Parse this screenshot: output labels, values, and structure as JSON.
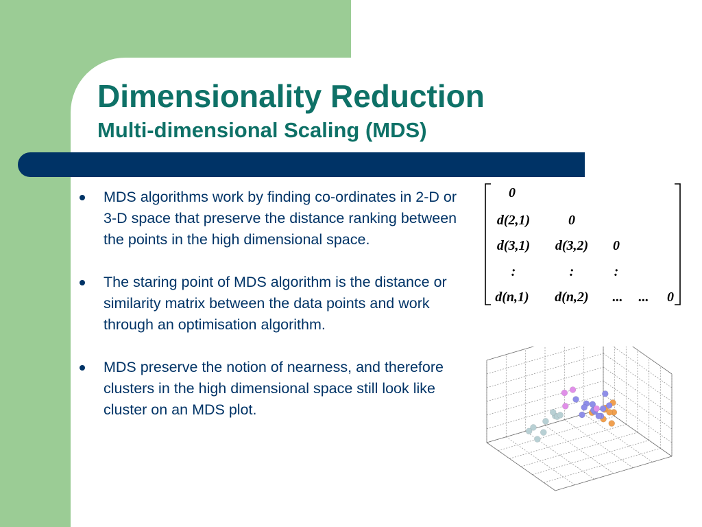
{
  "slide": {
    "title": "Dimensionality Reduction",
    "subtitle": "Multi-dimensional Scaling (MDS)",
    "colors": {
      "green": "#9bcc95",
      "teal_title": "#0e7167",
      "navy": "#003366",
      "blue_points": "#8e8ee8",
      "orange_points": "#f0a050",
      "violet_points": "#e090e8",
      "gray_points": "#b8d0d4"
    }
  },
  "bullets": [
    {
      "text": "MDS algorithms work by finding co-ordinates in 2-D or 3-D space that preserve the distance ranking between the points in the high dimensional space."
    },
    {
      "text": "The staring point of MDS algorithm is the distance or similarity matrix between the data points and work through an optimisation algorithm."
    },
    {
      "text": "MDS preserve the notion of nearness, and therefore clusters in the high dimensional space still look like cluster on an MDS plot."
    }
  ],
  "matrix": {
    "row1": {
      "c1": "0"
    },
    "row2": {
      "c1": "d(2,1)",
      "c2": "0"
    },
    "row3": {
      "c1": "d(3,1)",
      "c2": "d(3,2)",
      "c3": "0"
    },
    "row4": {
      "c1": ":",
      "c2": ":",
      "c3": ":"
    },
    "row5": {
      "c1": "d(n,1)",
      "c2": "d(n,2)",
      "c3": "...",
      "c4": "...",
      "c5": "0"
    }
  },
  "chart_data": {
    "type": "scatter",
    "dimensions": 3,
    "grid": true,
    "series": [
      {
        "color": "#8e8ee8",
        "points": [
          [
            -0.1,
            0.6,
            0.3
          ],
          [
            0.0,
            0.7,
            0.2
          ],
          [
            0.1,
            0.6,
            0.5
          ],
          [
            0.2,
            0.5,
            0.4
          ],
          [
            0.1,
            0.8,
            0.3
          ],
          [
            -0.2,
            0.5,
            0.6
          ],
          [
            0.3,
            0.6,
            0.3
          ],
          [
            0.2,
            0.8,
            0.5
          ],
          [
            0.0,
            0.5,
            0.2
          ],
          [
            0.1,
            0.4,
            0.4
          ],
          [
            -0.1,
            0.8,
            0.5
          ],
          [
            0.3,
            0.4,
            0.6
          ]
        ]
      },
      {
        "color": "#f0a050",
        "points": [
          [
            -0.6,
            0.1,
            -0.3
          ],
          [
            -0.5,
            0.0,
            -0.2
          ],
          [
            -0.4,
            0.1,
            -0.4
          ],
          [
            -0.7,
            -0.1,
            -0.2
          ],
          [
            -0.5,
            0.2,
            -0.5
          ],
          [
            -0.3,
            -0.1,
            -0.3
          ],
          [
            -0.6,
            -0.2,
            -0.4
          ],
          [
            -0.4,
            0.3,
            -0.1
          ]
        ]
      },
      {
        "color": "#e090e8",
        "points": [
          [
            0.2,
            0.9,
            0.6
          ],
          [
            0.4,
            0.2,
            0.7
          ],
          [
            0.5,
            0.4,
            0.5
          ],
          [
            0.3,
            0.3,
            0.8
          ]
        ]
      },
      {
        "color": "#b8d0d4",
        "points": [
          [
            0.6,
            0.3,
            0.2
          ],
          [
            0.7,
            0.1,
            0.0
          ],
          [
            0.8,
            0.2,
            -0.2
          ],
          [
            0.5,
            0.0,
            0.1
          ],
          [
            0.9,
            -0.1,
            -0.3
          ],
          [
            0.7,
            -0.3,
            -0.4
          ],
          [
            0.6,
            0.4,
            0.3
          ],
          [
            0.4,
            -0.1,
            -0.1
          ],
          [
            0.8,
            0.0,
            -0.5
          ]
        ]
      }
    ]
  }
}
